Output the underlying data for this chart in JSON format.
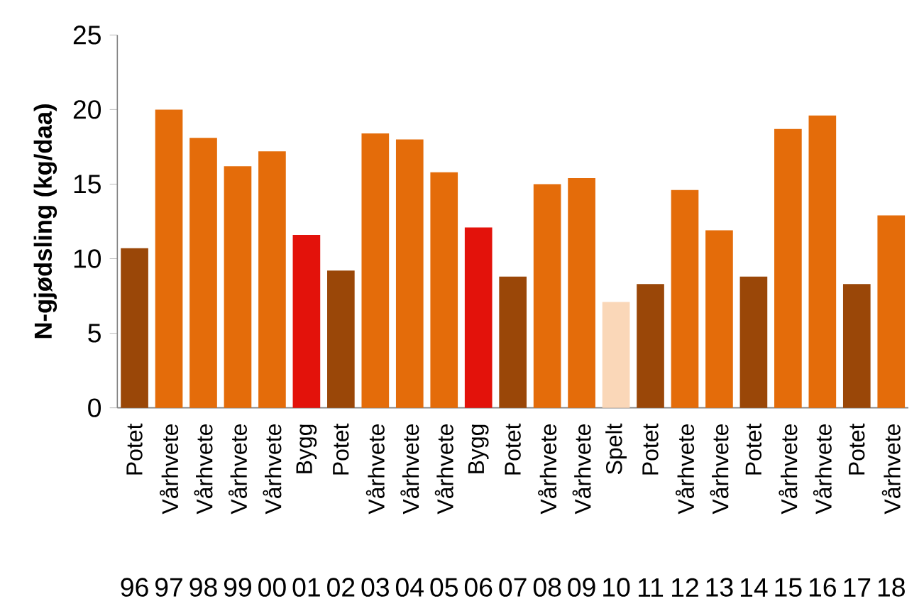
{
  "chart_data": {
    "type": "bar",
    "ylabel": "N-gjødsling (kg/daa)",
    "categories": [
      "Potet",
      "Vårhvete",
      "Vårhvete",
      "Vårhvete",
      "Vårhvete",
      "Bygg",
      "Potet",
      "Vårhvete",
      "Vårhvete",
      "Vårhvete",
      "Bygg",
      "Potet",
      "Vårhvete",
      "Vårhvete",
      "Spelt",
      "Potet",
      "Vårhvete",
      "Vårhvete",
      "Potet",
      "Vårhvete",
      "Vårhvete",
      "Potet",
      "Vårhvete"
    ],
    "values": [
      10.7,
      20.0,
      18.1,
      16.2,
      17.2,
      11.6,
      9.2,
      18.4,
      18.0,
      15.8,
      12.1,
      8.8,
      15.0,
      15.4,
      7.1,
      8.3,
      14.6,
      11.9,
      8.8,
      18.7,
      19.6,
      8.3,
      12.9
    ],
    "colors": [
      "#9a4708",
      "#e46c0a",
      "#e46c0a",
      "#e46c0a",
      "#e46c0a",
      "#e3120b",
      "#9a4708",
      "#e46c0a",
      "#e46c0a",
      "#e46c0a",
      "#e3120b",
      "#9a4708",
      "#e46c0a",
      "#e46c0a",
      "#fad7b8",
      "#9a4708",
      "#e46c0a",
      "#e46c0a",
      "#9a4708",
      "#e46c0a",
      "#e46c0a",
      "#9a4708",
      "#e46c0a"
    ],
    "annotations": [
      "96",
      "97",
      "98",
      "99",
      "00",
      "01",
      "02",
      "03",
      "04",
      "05",
      "06",
      "07",
      "08",
      "09",
      "10",
      "11",
      "12",
      "13",
      "14",
      "15",
      "16",
      "17",
      "18"
    ],
    "ylim": [
      0,
      25
    ],
    "yticks": [
      0,
      5,
      10,
      15,
      20,
      25
    ],
    "grid": false
  }
}
